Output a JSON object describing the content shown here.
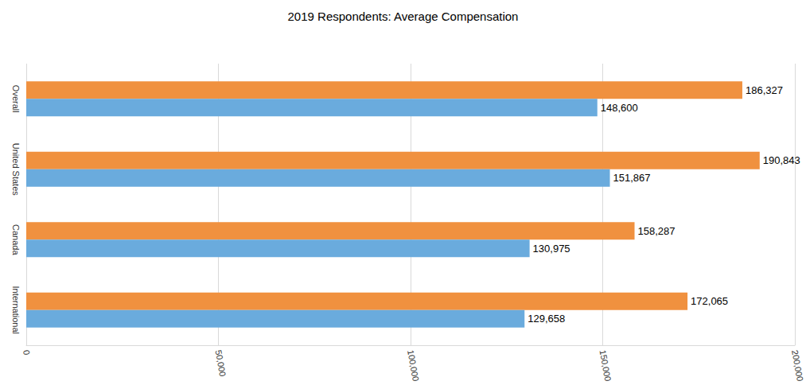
{
  "chart_data": {
    "type": "bar",
    "title": "2019 Respondents: Average Compensation",
    "orientation": "horizontal",
    "categories": [
      "Overall",
      "United States",
      "Canada",
      "International"
    ],
    "series": [
      {
        "color": "#f0913f",
        "values": [
          186327,
          190843,
          158287,
          172065
        ],
        "value_labels": [
          "186,327",
          "190,843",
          "158,287",
          "172,065"
        ]
      },
      {
        "color": "#6aabdd",
        "values": [
          148600,
          151867,
          130975,
          129658
        ],
        "value_labels": [
          "148,600",
          "151,867",
          "130,975",
          "129,658"
        ]
      }
    ],
    "xlim": [
      0,
      200000
    ],
    "xticks": [
      0,
      {
        "value": 50000,
        "label": "50,000"
      },
      {
        "value": 100000,
        "label": "100,000"
      },
      {
        "value": 150000,
        "label": "150,000"
      },
      {
        "value": 200000,
        "label": "200,000"
      }
    ],
    "grid": true,
    "data_labels": true
  }
}
